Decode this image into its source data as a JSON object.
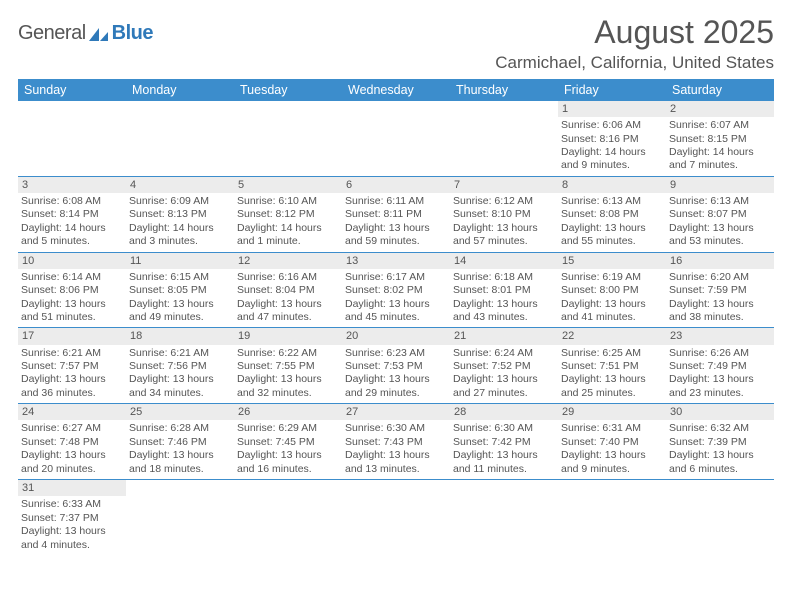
{
  "logo": {
    "text_main": "General",
    "text_accent": "Blue"
  },
  "title": "August 2025",
  "location": "Carmichael, California, United States",
  "colors": {
    "header_bg": "#3c8dcc",
    "header_text": "#ffffff",
    "daynum_bg": "#ececec",
    "border": "#3c8dcc",
    "body_text": "#555555",
    "accent": "#2f79b9",
    "page_bg": "#ffffff"
  },
  "font": {
    "title_size": 32,
    "location_size": 17,
    "weekday_size": 12.5,
    "cell_size": 10.5
  },
  "weekdays": [
    "Sunday",
    "Monday",
    "Tuesday",
    "Wednesday",
    "Thursday",
    "Friday",
    "Saturday"
  ],
  "weeks": [
    [
      {
        "n": "",
        "sunrise": "",
        "sunset": "",
        "daylight": ""
      },
      {
        "n": "",
        "sunrise": "",
        "sunset": "",
        "daylight": ""
      },
      {
        "n": "",
        "sunrise": "",
        "sunset": "",
        "daylight": ""
      },
      {
        "n": "",
        "sunrise": "",
        "sunset": "",
        "daylight": ""
      },
      {
        "n": "",
        "sunrise": "",
        "sunset": "",
        "daylight": ""
      },
      {
        "n": "1",
        "sunrise": "Sunrise: 6:06 AM",
        "sunset": "Sunset: 8:16 PM",
        "daylight": "Daylight: 14 hours and 9 minutes."
      },
      {
        "n": "2",
        "sunrise": "Sunrise: 6:07 AM",
        "sunset": "Sunset: 8:15 PM",
        "daylight": "Daylight: 14 hours and 7 minutes."
      }
    ],
    [
      {
        "n": "3",
        "sunrise": "Sunrise: 6:08 AM",
        "sunset": "Sunset: 8:14 PM",
        "daylight": "Daylight: 14 hours and 5 minutes."
      },
      {
        "n": "4",
        "sunrise": "Sunrise: 6:09 AM",
        "sunset": "Sunset: 8:13 PM",
        "daylight": "Daylight: 14 hours and 3 minutes."
      },
      {
        "n": "5",
        "sunrise": "Sunrise: 6:10 AM",
        "sunset": "Sunset: 8:12 PM",
        "daylight": "Daylight: 14 hours and 1 minute."
      },
      {
        "n": "6",
        "sunrise": "Sunrise: 6:11 AM",
        "sunset": "Sunset: 8:11 PM",
        "daylight": "Daylight: 13 hours and 59 minutes."
      },
      {
        "n": "7",
        "sunrise": "Sunrise: 6:12 AM",
        "sunset": "Sunset: 8:10 PM",
        "daylight": "Daylight: 13 hours and 57 minutes."
      },
      {
        "n": "8",
        "sunrise": "Sunrise: 6:13 AM",
        "sunset": "Sunset: 8:08 PM",
        "daylight": "Daylight: 13 hours and 55 minutes."
      },
      {
        "n": "9",
        "sunrise": "Sunrise: 6:13 AM",
        "sunset": "Sunset: 8:07 PM",
        "daylight": "Daylight: 13 hours and 53 minutes."
      }
    ],
    [
      {
        "n": "10",
        "sunrise": "Sunrise: 6:14 AM",
        "sunset": "Sunset: 8:06 PM",
        "daylight": "Daylight: 13 hours and 51 minutes."
      },
      {
        "n": "11",
        "sunrise": "Sunrise: 6:15 AM",
        "sunset": "Sunset: 8:05 PM",
        "daylight": "Daylight: 13 hours and 49 minutes."
      },
      {
        "n": "12",
        "sunrise": "Sunrise: 6:16 AM",
        "sunset": "Sunset: 8:04 PM",
        "daylight": "Daylight: 13 hours and 47 minutes."
      },
      {
        "n": "13",
        "sunrise": "Sunrise: 6:17 AM",
        "sunset": "Sunset: 8:02 PM",
        "daylight": "Daylight: 13 hours and 45 minutes."
      },
      {
        "n": "14",
        "sunrise": "Sunrise: 6:18 AM",
        "sunset": "Sunset: 8:01 PM",
        "daylight": "Daylight: 13 hours and 43 minutes."
      },
      {
        "n": "15",
        "sunrise": "Sunrise: 6:19 AM",
        "sunset": "Sunset: 8:00 PM",
        "daylight": "Daylight: 13 hours and 41 minutes."
      },
      {
        "n": "16",
        "sunrise": "Sunrise: 6:20 AM",
        "sunset": "Sunset: 7:59 PM",
        "daylight": "Daylight: 13 hours and 38 minutes."
      }
    ],
    [
      {
        "n": "17",
        "sunrise": "Sunrise: 6:21 AM",
        "sunset": "Sunset: 7:57 PM",
        "daylight": "Daylight: 13 hours and 36 minutes."
      },
      {
        "n": "18",
        "sunrise": "Sunrise: 6:21 AM",
        "sunset": "Sunset: 7:56 PM",
        "daylight": "Daylight: 13 hours and 34 minutes."
      },
      {
        "n": "19",
        "sunrise": "Sunrise: 6:22 AM",
        "sunset": "Sunset: 7:55 PM",
        "daylight": "Daylight: 13 hours and 32 minutes."
      },
      {
        "n": "20",
        "sunrise": "Sunrise: 6:23 AM",
        "sunset": "Sunset: 7:53 PM",
        "daylight": "Daylight: 13 hours and 29 minutes."
      },
      {
        "n": "21",
        "sunrise": "Sunrise: 6:24 AM",
        "sunset": "Sunset: 7:52 PM",
        "daylight": "Daylight: 13 hours and 27 minutes."
      },
      {
        "n": "22",
        "sunrise": "Sunrise: 6:25 AM",
        "sunset": "Sunset: 7:51 PM",
        "daylight": "Daylight: 13 hours and 25 minutes."
      },
      {
        "n": "23",
        "sunrise": "Sunrise: 6:26 AM",
        "sunset": "Sunset: 7:49 PM",
        "daylight": "Daylight: 13 hours and 23 minutes."
      }
    ],
    [
      {
        "n": "24",
        "sunrise": "Sunrise: 6:27 AM",
        "sunset": "Sunset: 7:48 PM",
        "daylight": "Daylight: 13 hours and 20 minutes."
      },
      {
        "n": "25",
        "sunrise": "Sunrise: 6:28 AM",
        "sunset": "Sunset: 7:46 PM",
        "daylight": "Daylight: 13 hours and 18 minutes."
      },
      {
        "n": "26",
        "sunrise": "Sunrise: 6:29 AM",
        "sunset": "Sunset: 7:45 PM",
        "daylight": "Daylight: 13 hours and 16 minutes."
      },
      {
        "n": "27",
        "sunrise": "Sunrise: 6:30 AM",
        "sunset": "Sunset: 7:43 PM",
        "daylight": "Daylight: 13 hours and 13 minutes."
      },
      {
        "n": "28",
        "sunrise": "Sunrise: 6:30 AM",
        "sunset": "Sunset: 7:42 PM",
        "daylight": "Daylight: 13 hours and 11 minutes."
      },
      {
        "n": "29",
        "sunrise": "Sunrise: 6:31 AM",
        "sunset": "Sunset: 7:40 PM",
        "daylight": "Daylight: 13 hours and 9 minutes."
      },
      {
        "n": "30",
        "sunrise": "Sunrise: 6:32 AM",
        "sunset": "Sunset: 7:39 PM",
        "daylight": "Daylight: 13 hours and 6 minutes."
      }
    ],
    [
      {
        "n": "31",
        "sunrise": "Sunrise: 6:33 AM",
        "sunset": "Sunset: 7:37 PM",
        "daylight": "Daylight: 13 hours and 4 minutes."
      },
      {
        "n": "",
        "sunrise": "",
        "sunset": "",
        "daylight": ""
      },
      {
        "n": "",
        "sunrise": "",
        "sunset": "",
        "daylight": ""
      },
      {
        "n": "",
        "sunrise": "",
        "sunset": "",
        "daylight": ""
      },
      {
        "n": "",
        "sunrise": "",
        "sunset": "",
        "daylight": ""
      },
      {
        "n": "",
        "sunrise": "",
        "sunset": "",
        "daylight": ""
      },
      {
        "n": "",
        "sunrise": "",
        "sunset": "",
        "daylight": ""
      }
    ]
  ]
}
